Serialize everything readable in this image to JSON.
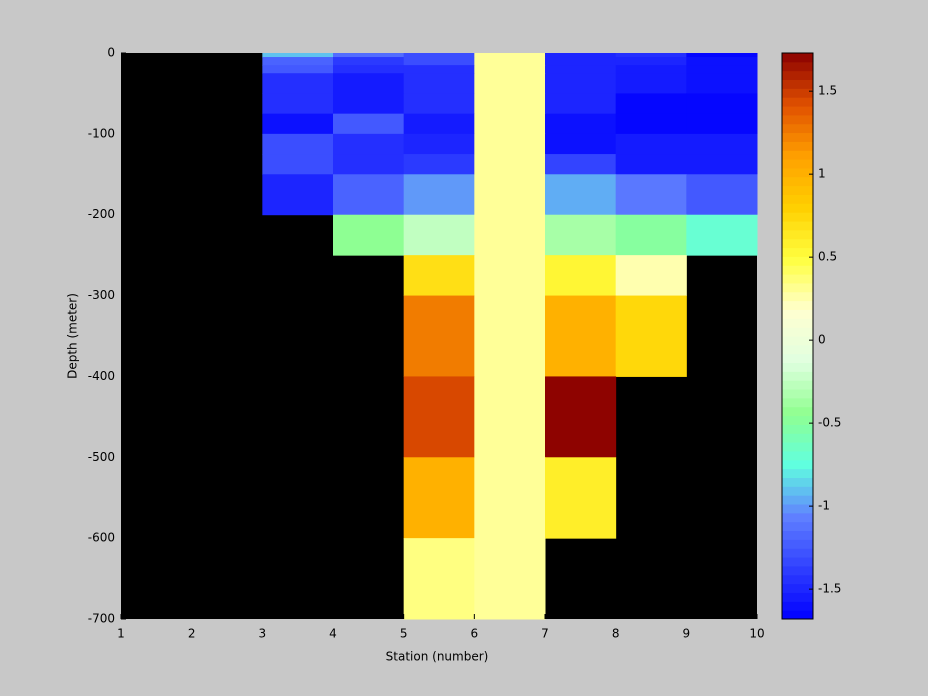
{
  "chart_data": {
    "type": "heatmap",
    "x_label": "Station (number)",
    "y_label": "Depth (meter)",
    "x": [
      1,
      2,
      3,
      4,
      5,
      6,
      7,
      8,
      9,
      10
    ],
    "y": [
      0,
      -5,
      -15,
      -25,
      -50,
      -75,
      -100,
      -125,
      -150,
      -200,
      -250,
      -300,
      -400,
      -500,
      -600,
      -700
    ],
    "values": [
      [
        null,
        null,
        -0.9,
        -1.15,
        -1.3,
        0.3,
        -1.5,
        -1.45,
        -1.65
      ],
      [
        null,
        null,
        -1.2,
        -1.4,
        -1.3,
        0.3,
        -1.5,
        -1.5,
        -1.6
      ],
      [
        null,
        null,
        -1.25,
        -1.45,
        -1.45,
        0.3,
        -1.5,
        -1.55,
        -1.6
      ],
      [
        null,
        null,
        -1.45,
        -1.55,
        -1.45,
        0.3,
        -1.5,
        -1.55,
        -1.6
      ],
      [
        null,
        null,
        -1.45,
        -1.55,
        -1.45,
        0.3,
        -1.5,
        -1.65,
        -1.65
      ],
      [
        null,
        null,
        -1.6,
        -1.25,
        -1.55,
        0.3,
        -1.6,
        -1.65,
        -1.65
      ],
      [
        null,
        null,
        -1.3,
        -1.45,
        -1.5,
        0.3,
        -1.6,
        -1.55,
        -1.55
      ],
      [
        null,
        null,
        -1.3,
        -1.45,
        -1.4,
        0.3,
        -1.35,
        -1.55,
        -1.55
      ],
      [
        null,
        null,
        -1.5,
        -1.2,
        -1.0,
        0.3,
        -0.95,
        -1.1,
        -1.25
      ],
      [
        null,
        null,
        null,
        -0.45,
        -0.25,
        0.3,
        -0.35,
        -0.5,
        -0.7
      ],
      [
        null,
        null,
        null,
        null,
        0.7,
        0.3,
        0.55,
        0.25,
        null
      ],
      [
        null,
        null,
        null,
        null,
        1.25,
        0.3,
        1.0,
        0.75,
        null
      ],
      [
        null,
        null,
        null,
        null,
        1.45,
        0.3,
        1.72,
        null,
        null
      ],
      [
        null,
        null,
        null,
        null,
        1.0,
        0.3,
        0.6,
        null,
        null
      ],
      [
        null,
        null,
        null,
        null,
        0.35,
        0.3,
        null,
        null,
        null
      ]
    ],
    "xlim": [
      1,
      10
    ],
    "xticks": [
      1,
      2,
      3,
      4,
      5,
      6,
      7,
      8,
      9,
      10
    ],
    "ylim": [
      -700,
      0
    ],
    "yticks": [
      0,
      -100,
      -200,
      -300,
      -400,
      -500,
      -600,
      -700
    ],
    "clim": [
      -1.68,
      1.73
    ],
    "cticks": [
      -1.5,
      -1,
      -0.5,
      0,
      0.5,
      1,
      1.5
    ],
    "colormap": [
      "#0000ff",
      "#3040ff",
      "#6080ff",
      "#60ffe0",
      "#90ff90",
      "#e0ffe0",
      "#ffffd0",
      "#ffff40",
      "#ffd000",
      "#ffa000",
      "#e05000",
      "#8b0000"
    ],
    "nan_color": "#000000"
  }
}
